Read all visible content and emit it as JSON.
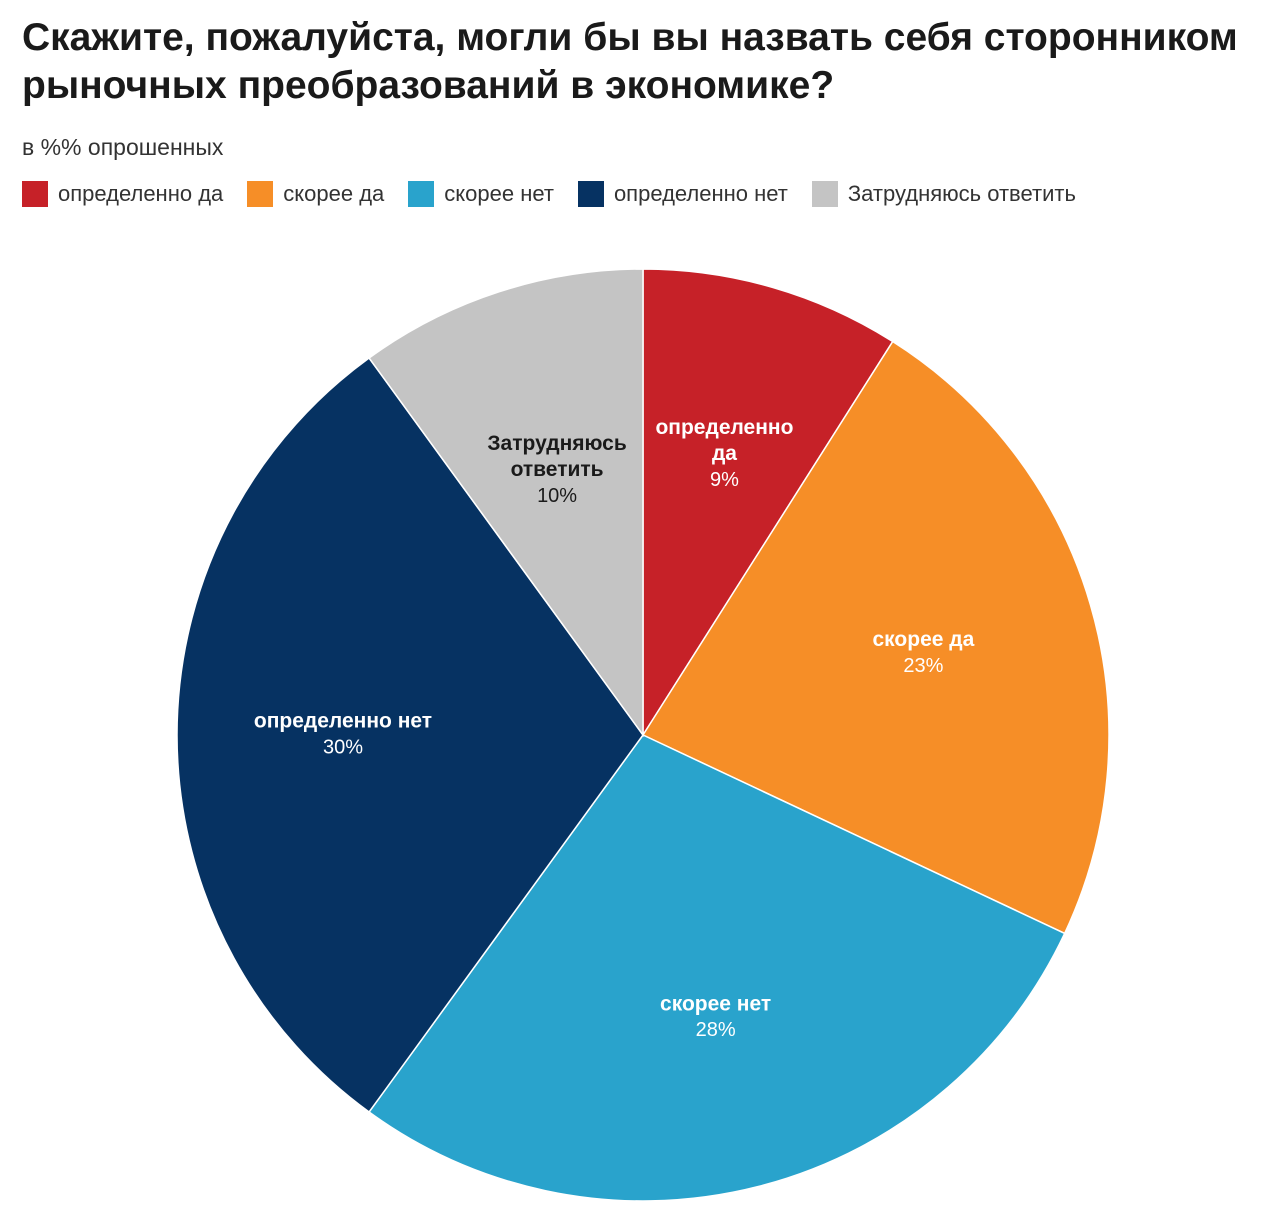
{
  "chart_data": {
    "type": "pie",
    "title": "Скажите, пожалуйста, могли бы вы назвать себя сторонником рыночных преобразований в экономике?",
    "subtitle": "в %% опрошенных",
    "legend_position": "top-left",
    "categories": [
      "определенно да",
      "скорее да",
      "скорее нет",
      "определенно нет",
      "Затрудняюсь ответить"
    ],
    "values": [
      9,
      23,
      28,
      30,
      10
    ],
    "value_labels": [
      "9%",
      "23%",
      "28%",
      "30%",
      "10%"
    ],
    "slice_label_lines": [
      [
        "определенно",
        "да"
      ],
      [
        "скорее да"
      ],
      [
        "скорее нет"
      ],
      [
        "определенно нет"
      ],
      [
        "Затрудняюсь",
        "ответить"
      ]
    ],
    "colors": [
      "#c62128",
      "#f68e27",
      "#29a3cc",
      "#063262",
      "#c4c4c4"
    ],
    "label_colors": [
      "#ffffff",
      "#ffffff",
      "#ffffff",
      "#ffffff",
      "#1a1a1a"
    ]
  }
}
